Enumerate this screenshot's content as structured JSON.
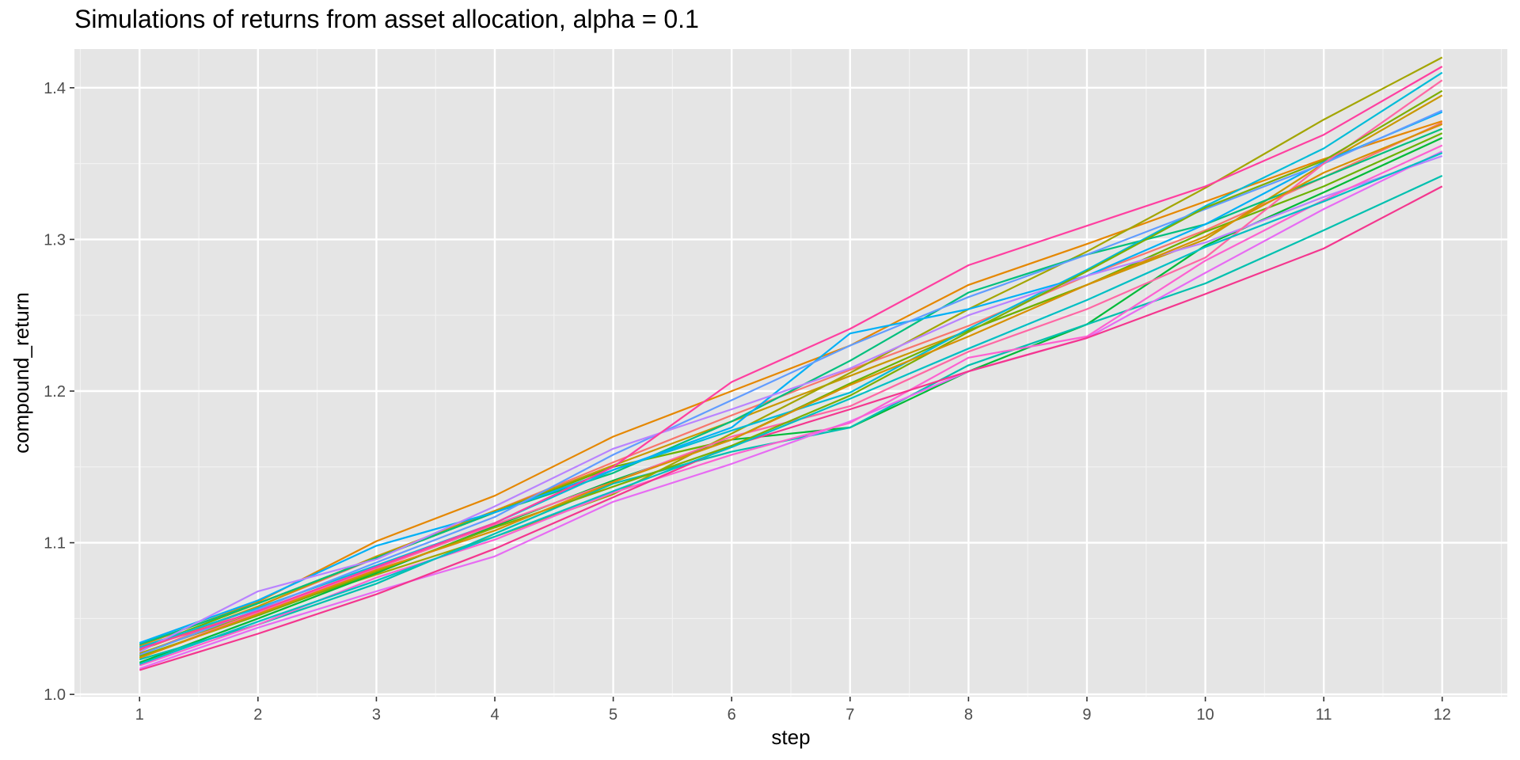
{
  "chart_data": {
    "type": "line",
    "title": "Simulations of returns from asset allocation, alpha = 0.1",
    "xlabel": "step",
    "ylabel": "compound_return",
    "x": [
      1,
      2,
      3,
      4,
      5,
      6,
      7,
      8,
      9,
      10,
      11,
      12
    ],
    "xlim": [
      0.45,
      12.55
    ],
    "ylim": [
      0.9985,
      1.4255
    ],
    "xticks": [
      "1",
      "2",
      "3",
      "4",
      "5",
      "6",
      "7",
      "8",
      "9",
      "10",
      "11",
      "12"
    ],
    "yticks": [
      "1.0",
      "1.1",
      "1.2",
      "1.3",
      "1.4"
    ],
    "ytick_values": [
      1.0,
      1.1,
      1.2,
      1.3,
      1.4
    ],
    "grid": true,
    "legend": "none",
    "colors": {
      "panel_background": "#e5e5e5",
      "grid_major": "#ffffff",
      "grid_minor": "#f2f2f2",
      "tick_text": "#4d4d4d"
    },
    "series": [
      {
        "color": "#F8766D",
        "values": [
          1.026,
          1.058,
          1.09,
          1.121,
          1.153,
          1.184,
          1.214,
          1.243,
          1.276,
          1.306,
          1.341,
          1.377
        ]
      },
      {
        "color": "#E58700",
        "values": [
          1.032,
          1.061,
          1.101,
          1.131,
          1.17,
          1.2,
          1.23,
          1.27,
          1.297,
          1.325,
          1.353,
          1.378
        ]
      },
      {
        "color": "#C99800",
        "values": [
          1.029,
          1.058,
          1.091,
          1.121,
          1.151,
          1.18,
          1.21,
          1.24,
          1.27,
          1.3,
          1.35,
          1.395
        ]
      },
      {
        "color": "#A3A500",
        "values": [
          1.027,
          1.054,
          1.079,
          1.104,
          1.132,
          1.172,
          1.212,
          1.254,
          1.292,
          1.334,
          1.379,
          1.42
        ]
      },
      {
        "color": "#6BB100",
        "values": [
          1.03,
          1.06,
          1.09,
          1.12,
          1.15,
          1.168,
          1.205,
          1.24,
          1.27,
          1.305,
          1.335,
          1.37
        ]
      },
      {
        "color": "#00BA38",
        "values": [
          1.021,
          1.05,
          1.08,
          1.111,
          1.141,
          1.168,
          1.176,
          1.213,
          1.244,
          1.296,
          1.331,
          1.367
        ]
      },
      {
        "color": "#00BF7D",
        "values": [
          1.033,
          1.06,
          1.09,
          1.12,
          1.146,
          1.18,
          1.22,
          1.265,
          1.29,
          1.31,
          1.341,
          1.373
        ]
      },
      {
        "color": "#00C0AF",
        "values": [
          1.023,
          1.046,
          1.073,
          1.106,
          1.139,
          1.16,
          1.176,
          1.217,
          1.244,
          1.271,
          1.306,
          1.342
        ]
      },
      {
        "color": "#00BCD8",
        "values": [
          1.031,
          1.057,
          1.085,
          1.113,
          1.148,
          1.174,
          1.199,
          1.241,
          1.28,
          1.322,
          1.36,
          1.41
        ]
      },
      {
        "color": "#00B0F6",
        "values": [
          1.034,
          1.062,
          1.098,
          1.12,
          1.148,
          1.176,
          1.238,
          1.254,
          1.276,
          1.31,
          1.351,
          1.384
        ]
      },
      {
        "color": "#619CFF",
        "values": [
          1.026,
          1.056,
          1.087,
          1.117,
          1.158,
          1.194,
          1.23,
          1.262,
          1.29,
          1.32,
          1.35,
          1.385
        ]
      },
      {
        "color": "#B983FF",
        "values": [
          1.028,
          1.068,
          1.089,
          1.124,
          1.162,
          1.188,
          1.215,
          1.25,
          1.276,
          1.298,
          1.328,
          1.355
        ]
      },
      {
        "color": "#E76BF3",
        "values": [
          1.017,
          1.044,
          1.068,
          1.091,
          1.127,
          1.152,
          1.18,
          1.213,
          1.235,
          1.278,
          1.32,
          1.358
        ]
      },
      {
        "color": "#FD61D1",
        "values": [
          1.019,
          1.046,
          1.077,
          1.102,
          1.133,
          1.158,
          1.179,
          1.222,
          1.236,
          1.286,
          1.326,
          1.362
        ]
      },
      {
        "color": "#FF67A4",
        "values": [
          1.024,
          1.054,
          1.083,
          1.112,
          1.14,
          1.17,
          1.19,
          1.226,
          1.254,
          1.288,
          1.35,
          1.405
        ]
      },
      {
        "color": "#FF3FA0",
        "values": [
          1.03,
          1.055,
          1.084,
          1.113,
          1.15,
          1.206,
          1.241,
          1.283,
          1.309,
          1.335,
          1.369,
          1.414
        ]
      },
      {
        "color": "#F4368E",
        "values": [
          1.016,
          1.04,
          1.066,
          1.096,
          1.13,
          1.164,
          1.188,
          1.213,
          1.235,
          1.264,
          1.294,
          1.335
        ]
      },
      {
        "color": "#7CAE00",
        "values": [
          1.025,
          1.052,
          1.081,
          1.11,
          1.137,
          1.164,
          1.197,
          1.239,
          1.279,
          1.321,
          1.352,
          1.398
        ]
      },
      {
        "color": "#D89000",
        "values": [
          1.024,
          1.053,
          1.082,
          1.108,
          1.14,
          1.168,
          1.204,
          1.236,
          1.27,
          1.302,
          1.344,
          1.376
        ]
      },
      {
        "color": "#00BFC4",
        "values": [
          1.02,
          1.048,
          1.075,
          1.104,
          1.134,
          1.163,
          1.195,
          1.228,
          1.26,
          1.295,
          1.325,
          1.357
        ]
      }
    ]
  }
}
